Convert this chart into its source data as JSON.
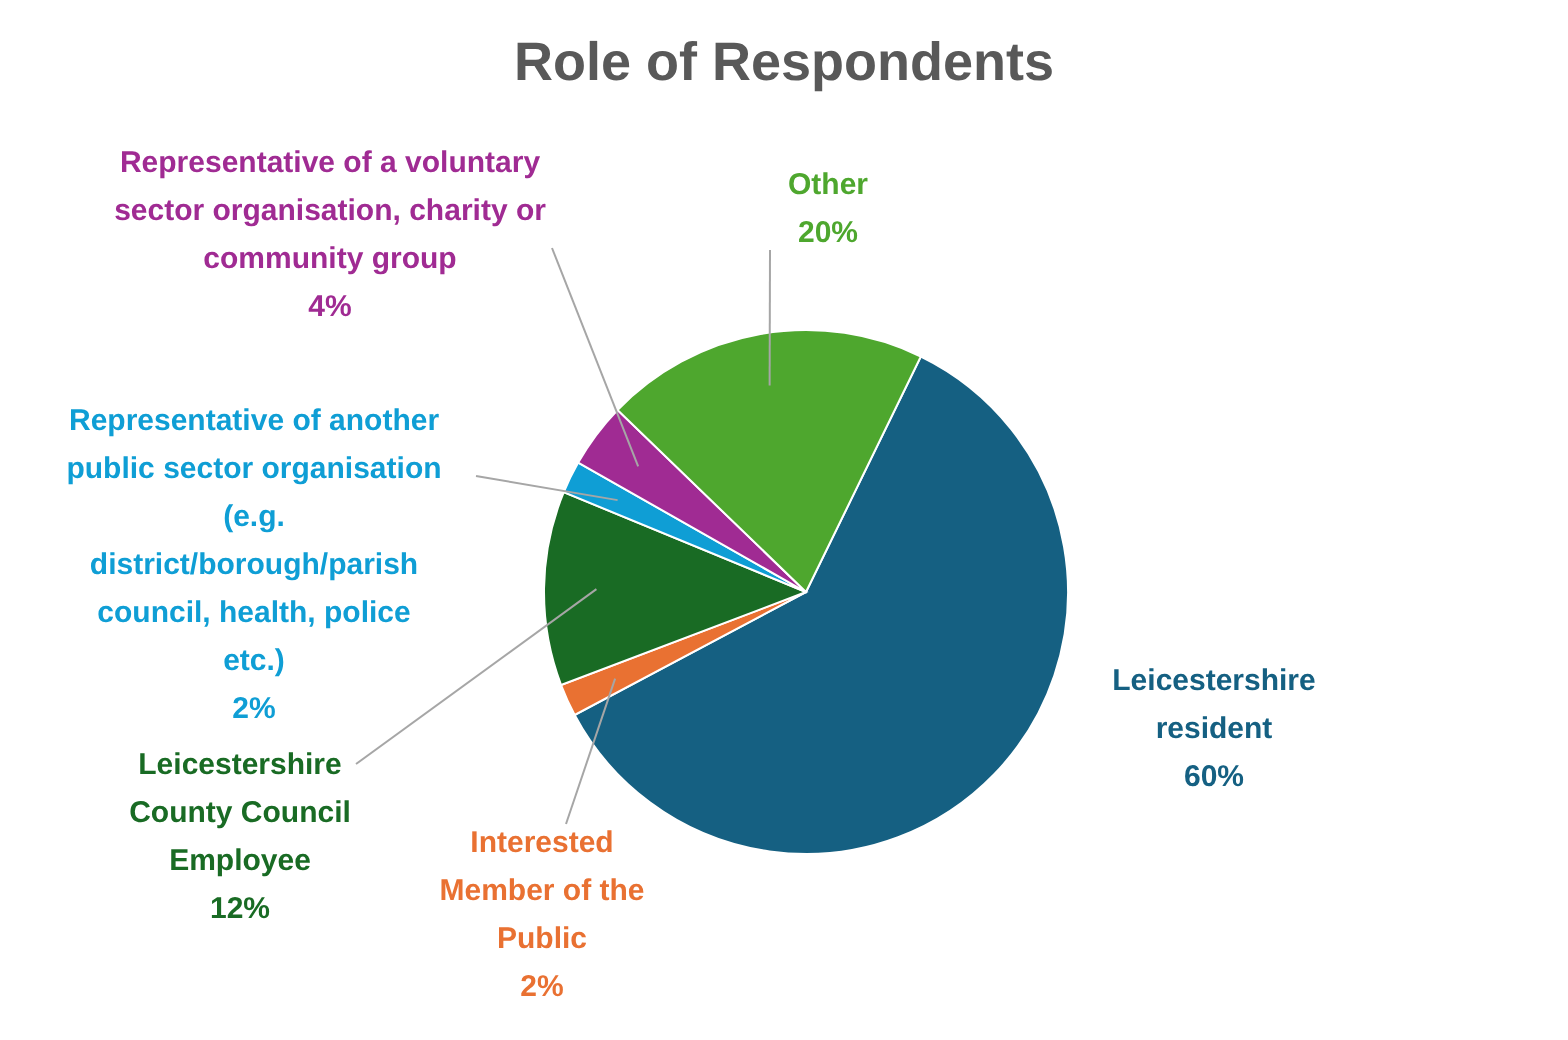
{
  "chart_data": {
    "type": "pie",
    "title": "Role of Respondents",
    "categories": [
      "Leicestershire resident",
      "Interested Member of the Public",
      "Leicestershire County Council Employee",
      "Representative of another public sector organisation (e.g. district/borough/parish council, health, police etc.)",
      "Representative of a voluntary sector organisation, charity or community group",
      "Other"
    ],
    "values": [
      60,
      2,
      12,
      2,
      4,
      20
    ],
    "colors": [
      "#156082",
      "#e97132",
      "#196b24",
      "#0f9ed5",
      "#a02b93",
      "#4ea72e"
    ],
    "value_labels": [
      "60%",
      "2%",
      "12%",
      "2%",
      "4%",
      "20%"
    ]
  }
}
